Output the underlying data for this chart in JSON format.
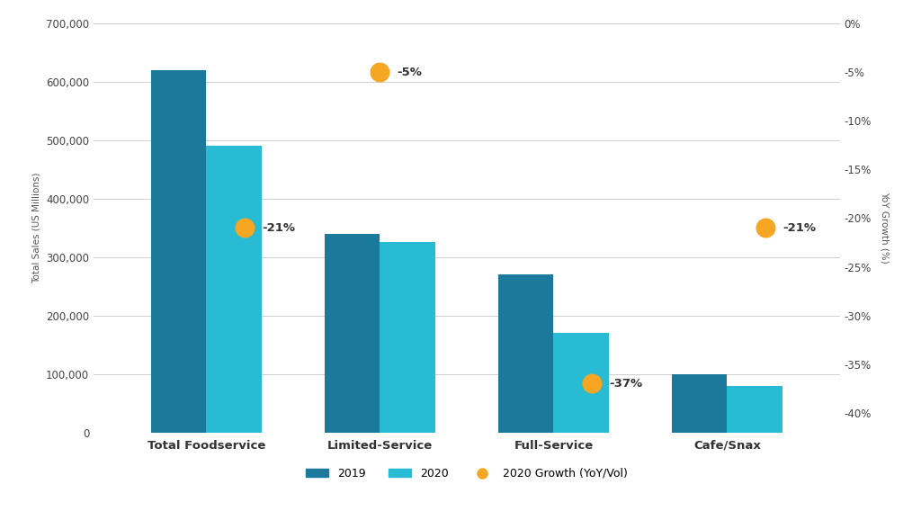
{
  "categories": [
    "Total Foodservice",
    "Limited-Service",
    "Full-Service",
    "Cafe/Snax"
  ],
  "values_2019": [
    620000,
    340000,
    270000,
    100000
  ],
  "values_2020": [
    490000,
    325000,
    170000,
    80000
  ],
  "growth_pct": [
    -21,
    -5,
    -37,
    -21
  ],
  "growth_labels": [
    "-21%",
    "-5%",
    "-37%",
    "-21%"
  ],
  "bar_color_2019": "#1b7a9b",
  "bar_color_2020": "#27bcd4",
  "dot_color": "#f5a623",
  "ylim_left": [
    0,
    700000
  ],
  "ylim_right": [
    -42,
    0
  ],
  "yticks_left": [
    0,
    100000,
    200000,
    300000,
    400000,
    500000,
    600000,
    700000
  ],
  "ytick_labels_left": [
    "0",
    "100,000",
    "200,000",
    "300,000",
    "400,000",
    "500,000",
    "600,000",
    "700,000"
  ],
  "yticks_right": [
    0,
    -5,
    -10,
    -15,
    -20,
    -25,
    -30,
    -35,
    -40
  ],
  "ytick_labels_right": [
    "0%",
    "-5%",
    "-10%",
    "-15%",
    "-20%",
    "-25%",
    "-30%",
    "-35%",
    "-40%"
  ],
  "ylabel_left": "Total Sales (US Millions)",
  "ylabel_right": "YoY Growth (%)",
  "legend_labels": [
    "2019",
    "2020",
    "2020 Growth (YoY/Vol)"
  ],
  "background_color": "#ffffff",
  "grid_color": "#c8c8c8",
  "bar_width": 0.32,
  "figsize": [
    10.24,
    5.88
  ],
  "dpi": 100
}
